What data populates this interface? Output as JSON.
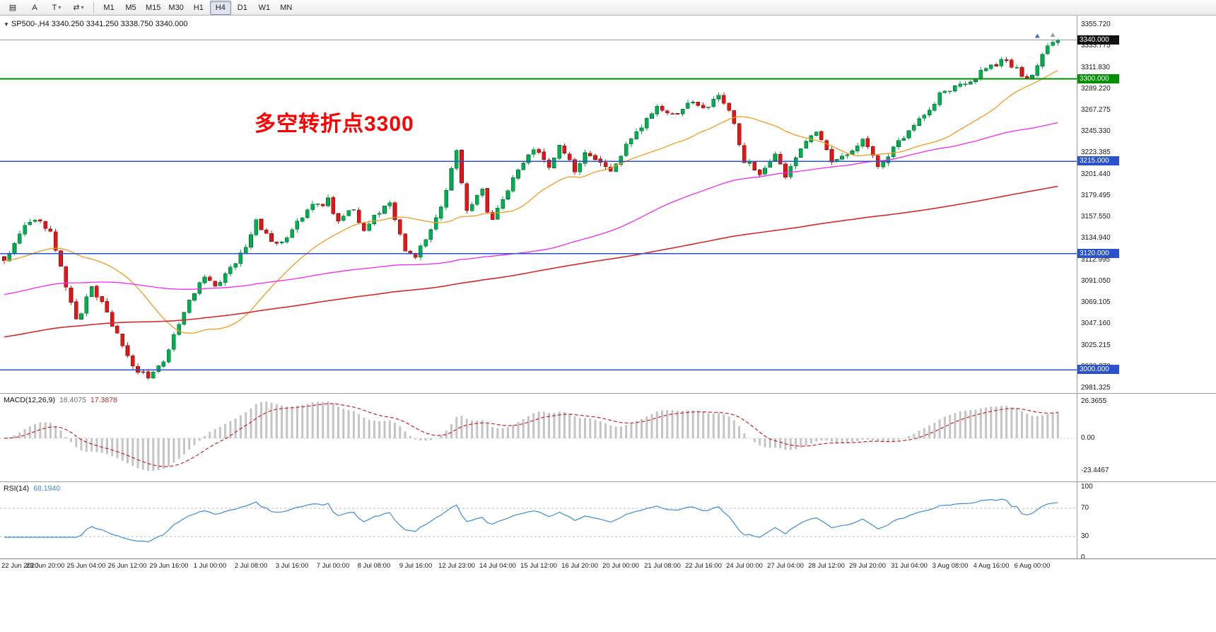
{
  "icons": {
    "caret_down": "▾",
    "symbol_dropdown": "▼"
  },
  "toolbar": {
    "tools": [
      {
        "name": "charts-grid",
        "glyph": "▤",
        "caret": false
      },
      {
        "name": "text-label",
        "glyph": "A",
        "caret": false
      },
      {
        "name": "text-tool",
        "glyph": "T",
        "caret": true
      },
      {
        "name": "arrange",
        "glyph": "⇄",
        "caret": true
      }
    ],
    "timeframes": [
      "M1",
      "M5",
      "M15",
      "M30",
      "H1",
      "H4",
      "D1",
      "W1",
      "MN"
    ],
    "active_timeframe": "H4"
  },
  "header": {
    "symbol_dropdown": "▼",
    "text": "SP500-,H4 3340.250 3341.250 3338.750 3340.000"
  },
  "chart_data": {
    "type": "candlestick",
    "symbol": "SP500-",
    "timeframe": "H4",
    "last_ohlc": {
      "open": "3340.250",
      "high": "3341.250",
      "low": "3338.750",
      "close": "3340.000"
    },
    "y_range": {
      "top": 3355.72,
      "bottom": 2981.325
    },
    "y_ticks": [
      "3355.720",
      "3333.775",
      "3311.830",
      "3289.220",
      "3267.275",
      "3245.330",
      "3223.385",
      "3201.440",
      "3179.495",
      "3157.550",
      "3134.940",
      "3112.995",
      "3091.050",
      "3069.105",
      "3047.160",
      "3025.215",
      "3003.270",
      "2981.325"
    ],
    "x_labels": [
      "22 Jun 2020",
      "23 Jun 20:00",
      "25 Jun 04:00",
      "26 Jun 12:00",
      "29 Jun 16:00",
      "1 Jul 00:00",
      "2 Jul 08:00",
      "3 Jul 16:00",
      "7 Jul 00:00",
      "8 Jul 08:00",
      "9 Jul 16:00",
      "12 Jul 23:00",
      "14 Jul 04:00",
      "15 Jul 12:00",
      "16 Jul 20:00",
      "20 Jul 00:00",
      "21 Jul 08:00",
      "22 Jul 16:00",
      "24 Jul 00:00",
      "27 Jul 04:00",
      "28 Jul 12:00",
      "29 Jul 20:00",
      "31 Jul 04:00",
      "3 Aug 08:00",
      "4 Aug 16:00",
      "6 Aug 00:00"
    ],
    "bars_count": 206,
    "close_path": [
      [
        0,
        3112
      ],
      [
        2,
        3130
      ],
      [
        4,
        3148
      ],
      [
        7,
        3155
      ],
      [
        9,
        3142
      ],
      [
        11,
        3108
      ],
      [
        12,
        3085
      ],
      [
        14,
        3052
      ],
      [
        15,
        3060
      ],
      [
        17,
        3088
      ],
      [
        19,
        3068
      ],
      [
        20,
        3058
      ],
      [
        22,
        3035
      ],
      [
        24,
        3012
      ],
      [
        25,
        3003
      ],
      [
        27,
        2996
      ],
      [
        28,
        2993
      ],
      [
        30,
        3004
      ],
      [
        31,
        3010
      ],
      [
        33,
        3036
      ],
      [
        35,
        3062
      ],
      [
        36,
        3072
      ],
      [
        38,
        3090
      ],
      [
        39,
        3097
      ],
      [
        41,
        3086
      ],
      [
        43,
        3098
      ],
      [
        44,
        3106
      ],
      [
        46,
        3118
      ],
      [
        47,
        3128
      ],
      [
        49,
        3152
      ],
      [
        51,
        3140
      ],
      [
        52,
        3130
      ],
      [
        54,
        3132
      ],
      [
        55,
        3136
      ],
      [
        57,
        3152
      ],
      [
        59,
        3165
      ],
      [
        60,
        3172
      ],
      [
        62,
        3170
      ],
      [
        63,
        3176
      ],
      [
        65,
        3152
      ],
      [
        66,
        3158
      ],
      [
        68,
        3168
      ],
      [
        69,
        3150
      ],
      [
        70,
        3146
      ],
      [
        72,
        3158
      ],
      [
        74,
        3170
      ],
      [
        75,
        3172
      ],
      [
        77,
        3138
      ],
      [
        78,
        3122
      ],
      [
        80,
        3118
      ],
      [
        82,
        3134
      ],
      [
        83,
        3146
      ],
      [
        85,
        3168
      ],
      [
        86,
        3182
      ],
      [
        87,
        3205
      ],
      [
        88,
        3227
      ],
      [
        89,
        3195
      ],
      [
        90,
        3167
      ],
      [
        92,
        3178
      ],
      [
        93,
        3186
      ],
      [
        94,
        3160
      ],
      [
        95,
        3157
      ],
      [
        97,
        3176
      ],
      [
        99,
        3196
      ],
      [
        100,
        3206
      ],
      [
        102,
        3220
      ],
      [
        103,
        3228
      ],
      [
        105,
        3215
      ],
      [
        106,
        3211
      ],
      [
        108,
        3230
      ],
      [
        110,
        3214
      ],
      [
        111,
        3206
      ],
      [
        113,
        3222
      ],
      [
        115,
        3217
      ],
      [
        116,
        3212
      ],
      [
        118,
        3202
      ],
      [
        120,
        3220
      ],
      [
        121,
        3231
      ],
      [
        123,
        3243
      ],
      [
        124,
        3251
      ],
      [
        126,
        3264
      ],
      [
        127,
        3270
      ],
      [
        129,
        3264
      ],
      [
        130,
        3262
      ],
      [
        132,
        3271
      ],
      [
        133,
        3276
      ],
      [
        135,
        3272
      ],
      [
        136,
        3270
      ],
      [
        138,
        3278
      ],
      [
        139,
        3283
      ],
      [
        141,
        3270
      ],
      [
        142,
        3256
      ],
      [
        143,
        3235
      ],
      [
        144,
        3216
      ],
      [
        146,
        3208
      ],
      [
        147,
        3204
      ],
      [
        149,
        3216
      ],
      [
        150,
        3222
      ],
      [
        151,
        3210
      ],
      [
        152,
        3201
      ],
      [
        154,
        3218
      ],
      [
        155,
        3230
      ],
      [
        157,
        3239
      ],
      [
        158,
        3244
      ],
      [
        160,
        3226
      ],
      [
        161,
        3217
      ],
      [
        163,
        3221
      ],
      [
        164,
        3223
      ],
      [
        166,
        3234
      ],
      [
        167,
        3241
      ],
      [
        169,
        3220
      ],
      [
        170,
        3211
      ],
      [
        172,
        3222
      ],
      [
        173,
        3229
      ],
      [
        175,
        3241
      ],
      [
        176,
        3248
      ],
      [
        178,
        3256
      ],
      [
        179,
        3262
      ],
      [
        181,
        3276
      ],
      [
        182,
        3286
      ],
      [
        184,
        3289
      ],
      [
        185,
        3291
      ],
      [
        187,
        3295
      ],
      [
        188,
        3298
      ],
      [
        190,
        3306
      ],
      [
        191,
        3311
      ],
      [
        193,
        3316
      ],
      [
        194,
        3319
      ],
      [
        196,
        3313
      ],
      [
        197,
        3309
      ],
      [
        199,
        3299
      ],
      [
        200,
        3305
      ],
      [
        202,
        3326
      ],
      [
        204,
        3337
      ],
      [
        205,
        3340
      ]
    ],
    "levels": [
      {
        "type": "current",
        "price": 3340.0,
        "label": "3340.000",
        "color": "#9b9b9b",
        "tag_color": "#111111"
      },
      {
        "type": "hline",
        "price": 3300.0,
        "label": "3300.000",
        "color": "#009100",
        "tag_color": "#009100"
      },
      {
        "type": "hline",
        "price": 3215.0,
        "label": "3215.000",
        "color": "#2a52cc",
        "tag_color": "#2a52cc"
      },
      {
        "type": "hline",
        "price": 3120.0,
        "label": "3120.000",
        "color": "#2a52cc",
        "tag_color": "#2a52cc"
      },
      {
        "type": "hline",
        "price": 3000.0,
        "label": "3000.000",
        "color": "#2a52cc",
        "tag_color": "#2a52cc"
      }
    ],
    "annotation": {
      "text": "多空转折点3300",
      "color": "#ff0000"
    },
    "moving_averages": [
      {
        "name": "fast",
        "period": 24,
        "color": "#f79a1f"
      },
      {
        "name": "medium",
        "period": 96,
        "color": "#f329f3"
      },
      {
        "name": "slow",
        "period": 200,
        "color": "#d42a2a"
      }
    ],
    "markers": [
      {
        "shape": "up-arrow",
        "bar": 201,
        "price": 3344,
        "color": "#3b6fd4"
      },
      {
        "shape": "up-arrow",
        "bar": 204,
        "price": 3345,
        "color": "#8e9ba8"
      }
    ],
    "colors": {
      "bull": "#00b050",
      "bull_stroke": "#006b30",
      "bear": "#e11717",
      "bear_stroke": "#8f0e0e"
    },
    "indicators": {
      "macd": {
        "label": "MACD(12,26,9)",
        "params": [
          12,
          26,
          9
        ],
        "main_value": "18.4075",
        "signal_value": "17.3878",
        "ticks": [
          "26.3655",
          "0.00",
          "-23.4467"
        ],
        "histogram_color": "#c4c4c4",
        "signal_color": "#cc2222"
      },
      "rsi": {
        "label": "RSI(14)",
        "period": 14,
        "value": "68.1940",
        "ticks": [
          "100",
          "70",
          "30",
          "0"
        ],
        "levels": [
          70,
          30
        ],
        "line_color": "#3c8cdc"
      }
    }
  }
}
